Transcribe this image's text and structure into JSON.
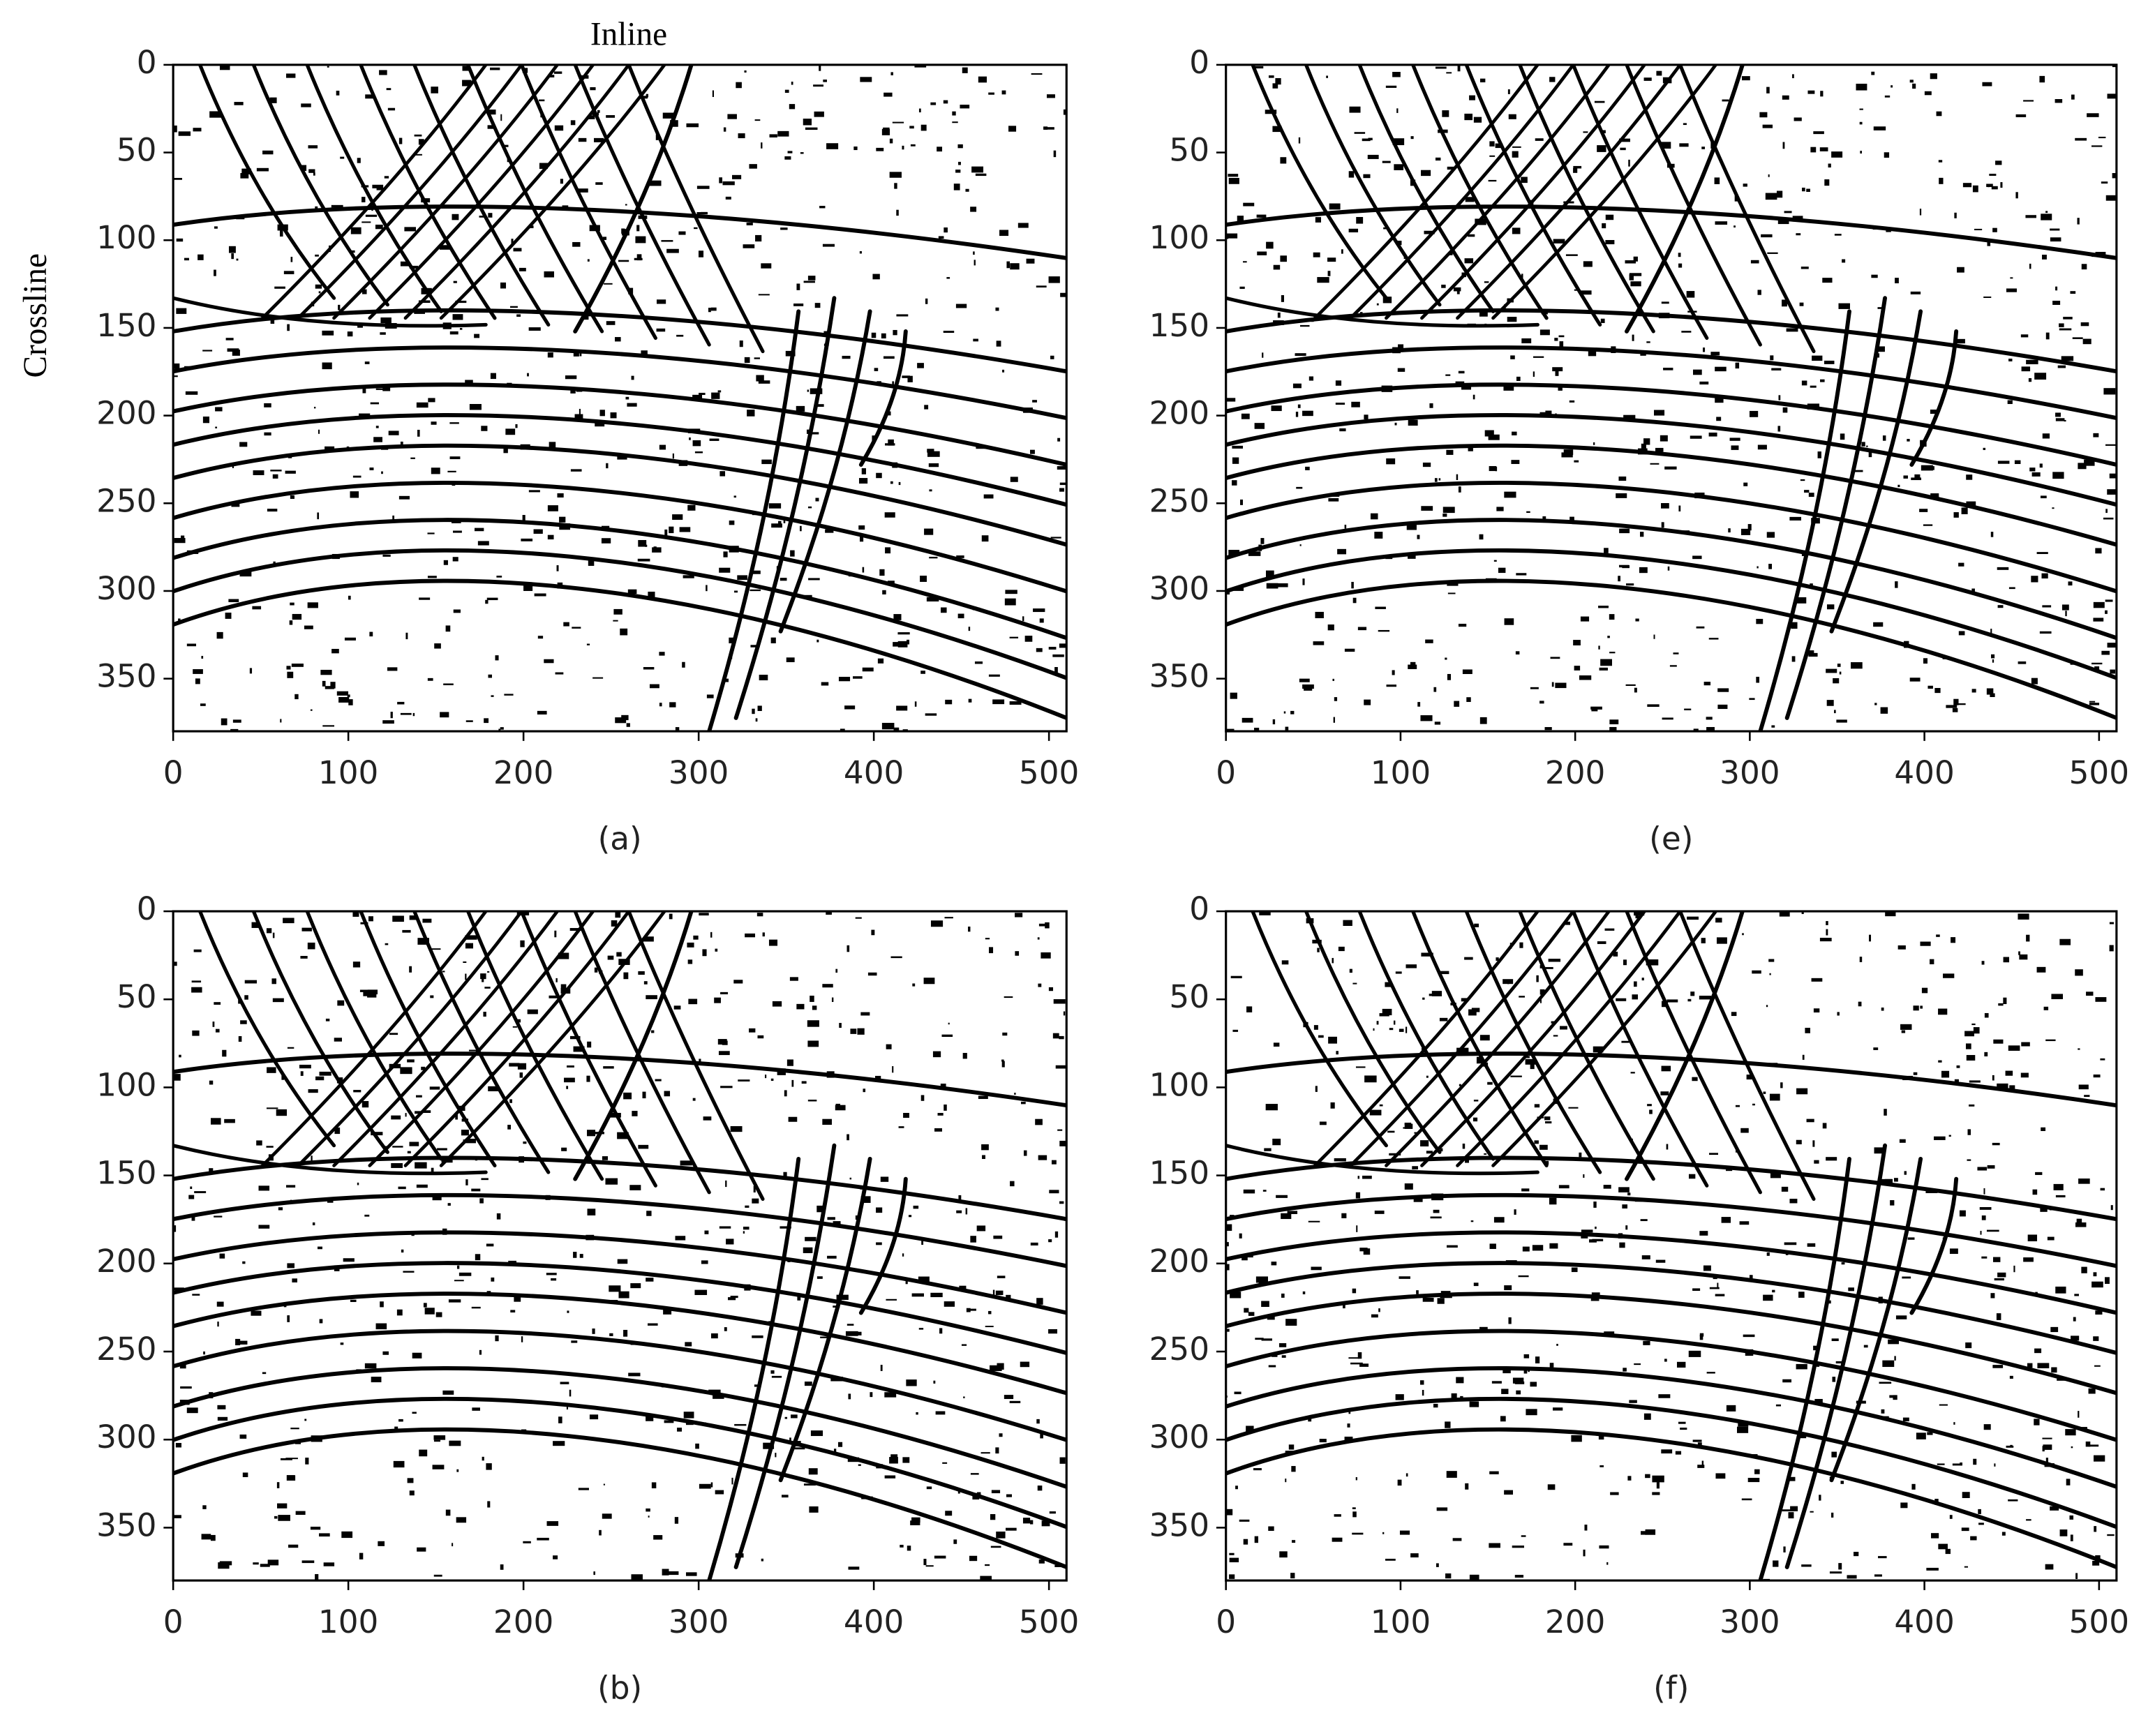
{
  "chart_data": [
    {
      "type": "image",
      "caption": "(a)",
      "x_label": "Inline",
      "y_label": "Crossline",
      "xlim": [
        0,
        510
      ],
      "ylim": [
        380,
        0
      ],
      "xticks": [
        0,
        100,
        200,
        300,
        400,
        500
      ],
      "yticks": [
        0,
        50,
        100,
        150,
        200,
        250,
        300,
        350
      ]
    },
    {
      "type": "image",
      "caption": "(e)",
      "xlim": [
        0,
        510
      ],
      "ylim": [
        380,
        0
      ],
      "xticks": [
        0,
        100,
        200,
        300,
        400,
        500
      ],
      "yticks": [
        0,
        50,
        100,
        150,
        200,
        250,
        300,
        350
      ]
    },
    {
      "type": "image",
      "caption": "(b)",
      "xlim": [
        0,
        510
      ],
      "ylim": [
        380,
        0
      ],
      "xticks": [
        0,
        100,
        200,
        300,
        400,
        500
      ],
      "yticks": [
        0,
        50,
        100,
        150,
        200,
        250,
        300,
        350
      ]
    },
    {
      "type": "image",
      "caption": "(f)",
      "xlim": [
        0,
        510
      ],
      "ylim": [
        380,
        0
      ],
      "xticks": [
        0,
        100,
        200,
        300,
        400,
        500
      ],
      "yticks": [
        0,
        50,
        100,
        150,
        200,
        250,
        300,
        350
      ]
    }
  ]
}
